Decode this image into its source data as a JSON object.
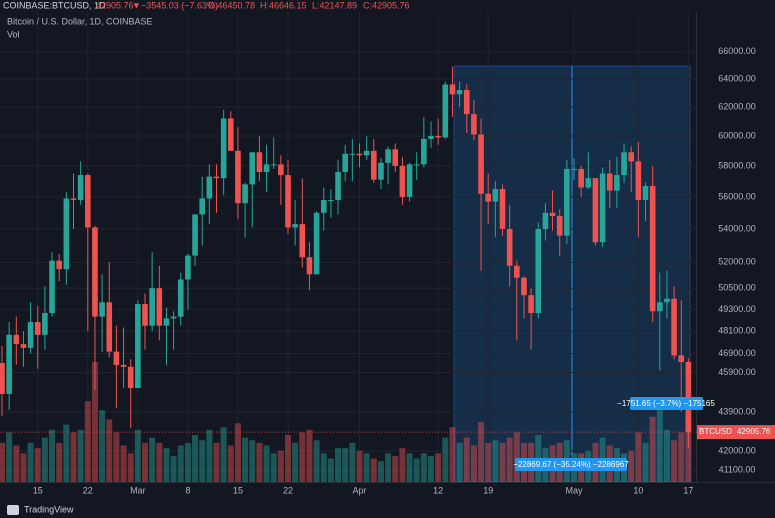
{
  "chart_data": {
    "type": "candlestick",
    "title": "COINBASE:BTCUSD, 1D",
    "subtitle": "Bitcoin / U.S. Dollar, 1D, COINBASE",
    "volume_label": "Vol",
    "header": {
      "change_arrow": "▼",
      "change": "−3545.03 (−7.63%)",
      "ohlc": [
        "O:46450.78",
        "H:46646.15",
        "L:42147.89",
        "C:42905.76"
      ]
    },
    "symbol_label": "BTCUSD",
    "annotations": [
      "−1751.65 (−3.7%) −175165",
      "−22869.67 (−35.24%) −2286967"
    ],
    "branding": "TradingView",
    "up_color": "#26a69a",
    "down_color": "#ef5350",
    "log_scale": true,
    "grid": true,
    "ylim": [
      40550,
      69040
    ],
    "yticks": [
      {
        "value": 66000,
        "label": "66000.00"
      },
      {
        "value": 64000,
        "label": "64000.00"
      },
      {
        "value": 62000,
        "label": "62000.00"
      },
      {
        "value": 60000,
        "label": "60000.00"
      },
      {
        "value": 58000,
        "label": "58000.00"
      },
      {
        "value": 56000,
        "label": "56000.00"
      },
      {
        "value": 54000,
        "label": "54000.00"
      },
      {
        "value": 52000,
        "label": "52000.00"
      },
      {
        "value": 50500,
        "label": "50500.00"
      },
      {
        "value": 49300,
        "label": "49300.00"
      },
      {
        "value": 48100,
        "label": "48100.00"
      },
      {
        "value": 46900,
        "label": "46900.00"
      },
      {
        "value": 45900,
        "label": "45900.00"
      },
      {
        "value": 43900,
        "label": "43900.00"
      },
      {
        "value": 42000,
        "label": "42000.00"
      },
      {
        "value": 41100,
        "label": "41100.00"
      }
    ],
    "categories": [
      null,
      null,
      null,
      null,
      null,
      "15",
      null,
      null,
      null,
      null,
      null,
      null,
      "22",
      null,
      null,
      null,
      null,
      null,
      null,
      "Mar",
      null,
      null,
      null,
      null,
      null,
      null,
      "8",
      null,
      null,
      null,
      null,
      null,
      null,
      "15",
      null,
      null,
      null,
      null,
      null,
      null,
      "22",
      null,
      null,
      null,
      null,
      null,
      null,
      null,
      null,
      null,
      "Apr",
      null,
      null,
      null,
      null,
      null,
      null,
      null,
      null,
      null,
      null,
      "12",
      null,
      null,
      null,
      null,
      null,
      null,
      "19",
      null,
      null,
      null,
      null,
      null,
      null,
      null,
      null,
      null,
      null,
      null,
      "May",
      null,
      null,
      null,
      null,
      null,
      null,
      null,
      null,
      "10",
      null,
      null,
      null,
      null,
      null,
      null,
      "17"
    ],
    "open": [
      46400,
      44800,
      47900,
      47400,
      47200,
      48600,
      47900,
      49100,
      52100,
      51600,
      55900,
      55800,
      57400,
      54100,
      48900,
      49700,
      47000,
      46300,
      46200,
      45100,
      49600,
      48400,
      50500,
      48400,
      48800,
      48900,
      51000,
      52400,
      54900,
      55900,
      57300,
      57200,
      61200,
      59000,
      55600,
      56800,
      58900,
      57600,
      58100,
      58100,
      57400,
      54100,
      54300,
      52300,
      51300,
      55000,
      55800,
      55800,
      57600,
      58800,
      58800,
      58700,
      59000,
      57100,
      58200,
      59100,
      58000,
      56000,
      58100,
      58100,
      59800,
      60000,
      59900,
      63600,
      62900,
      63200,
      61500,
      60100,
      56200,
      55700,
      56500,
      54000,
      51800,
      51100,
      50100,
      49100,
      54000,
      55000,
      54800,
      53600,
      57800,
      57800,
      56600,
      57200,
      53200,
      57500,
      56400,
      57400,
      58900,
      58300,
      55800,
      56700,
      49200,
      49700,
      49900,
      46800,
      46450.78
    ],
    "high": [
      47300,
      48600,
      48900,
      48100,
      49700,
      49500,
      50600,
      52600,
      52500,
      56300,
      57500,
      58300,
      57500,
      54200,
      51300,
      52000,
      48400,
      48300,
      46600,
      49800,
      50200,
      52600,
      51800,
      49400,
      49200,
      51400,
      52500,
      54900,
      57300,
      58100,
      58100,
      61800,
      61700,
      60600,
      56900,
      58900,
      60000,
      59400,
      59900,
      58700,
      58400,
      55800,
      57200,
      53200,
      55100,
      56600,
      56500,
      58400,
      59400,
      59800,
      59500,
      60000,
      59800,
      58500,
      59300,
      59500,
      58600,
      58200,
      58900,
      61300,
      61000,
      61200,
      63800,
      64900,
      63800,
      63600,
      62500,
      61200,
      57500,
      57000,
      56800,
      55500,
      52100,
      51200,
      50500,
      54400,
      55600,
      56400,
      55200,
      58400,
      58500,
      58000,
      58900,
      57200,
      57900,
      58400,
      58600,
      59500,
      59300,
      59600,
      56900,
      58000,
      51400,
      51500,
      50600,
      49800,
      46646.15
    ],
    "low": [
      43700,
      44000,
      46300,
      46200,
      46900,
      46100,
      47100,
      48900,
      50900,
      50700,
      54000,
      55500,
      48100,
      45000,
      47000,
      46700,
      44100,
      45100,
      43100,
      45100,
      47100,
      48100,
      47600,
      46300,
      47100,
      48400,
      49300,
      51800,
      53000,
      54300,
      55000,
      56100,
      59000,
      54600,
      53500,
      54100,
      57000,
      56300,
      57800,
      55500,
      53700,
      53000,
      51700,
      50400,
      51300,
      53900,
      54700,
      54900,
      57000,
      57000,
      57900,
      58400,
      56900,
      56500,
      56800,
      57600,
      55500,
      55700,
      57100,
      57900,
      59200,
      59400,
      59800,
      61300,
      62000,
      60200,
      59700,
      51500,
      54300,
      53500,
      53600,
      50600,
      47600,
      48800,
      47100,
      48800,
      53300,
      53900,
      52400,
      53100,
      57100,
      56000,
      56500,
      53000,
      52900,
      55300,
      55300,
      56900,
      56300,
      53500,
      54500,
      48600,
      46000,
      48800,
      46600,
      43900,
      42147.89
    ],
    "close": [
      44800,
      47900,
      47400,
      47200,
      48600,
      47900,
      49100,
      52100,
      51600,
      55900,
      55800,
      57400,
      54100,
      48900,
      49700,
      47000,
      46300,
      46200,
      45100,
      49600,
      48400,
      50500,
      48400,
      48800,
      48900,
      51000,
      52400,
      54900,
      55900,
      57300,
      57200,
      61200,
      59000,
      55600,
      56800,
      58900,
      57600,
      58100,
      58100,
      57400,
      54100,
      54300,
      52300,
      51300,
      55000,
      55800,
      55800,
      57600,
      58800,
      58800,
      58700,
      59000,
      57100,
      58200,
      59100,
      58000,
      56000,
      58100,
      58100,
      59800,
      60000,
      59900,
      63600,
      62900,
      63200,
      61500,
      60100,
      56200,
      55700,
      56500,
      54000,
      51800,
      51100,
      50100,
      49100,
      54000,
      55000,
      54800,
      53600,
      57800,
      57800,
      56600,
      57200,
      53200,
      57500,
      56400,
      57400,
      58900,
      58300,
      55800,
      56700,
      49200,
      49700,
      49900,
      46800,
      46450.78,
      42905.76
    ],
    "volume": [
      30,
      38,
      28,
      22,
      30,
      26,
      34,
      40,
      30,
      44,
      38,
      40,
      62,
      92,
      55,
      48,
      38,
      28,
      22,
      40,
      30,
      34,
      30,
      26,
      20,
      28,
      30,
      36,
      32,
      40,
      30,
      42,
      28,
      45,
      34,
      32,
      30,
      28,
      22,
      24,
      36,
      30,
      38,
      40,
      32,
      22,
      18,
      26,
      26,
      30,
      24,
      22,
      18,
      16,
      22,
      20,
      26,
      22,
      18,
      22,
      20,
      22,
      34,
      42,
      30,
      34,
      28,
      46,
      30,
      32,
      30,
      34,
      38,
      30,
      30,
      36,
      26,
      28,
      30,
      32,
      22,
      22,
      24,
      30,
      34,
      28,
      26,
      22,
      24,
      38,
      30,
      50,
      62,
      40,
      32,
      38,
      50
    ]
  }
}
